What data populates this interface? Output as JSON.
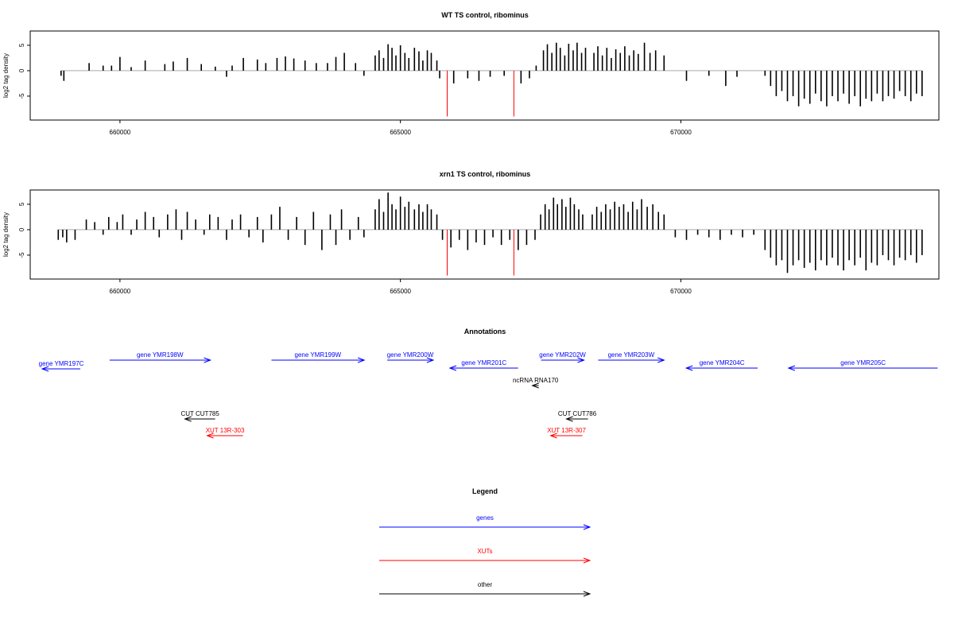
{
  "chart_data": [
    {
      "type": "bar",
      "title": "WT TS control, ribominus",
      "ylabel": "log2 tag density",
      "xlim": [
        658400,
        674600
      ],
      "ylim": [
        -9.7,
        7.8
      ],
      "xticks": [
        660000,
        665000,
        670000
      ],
      "yticks": [
        -5,
        0,
        5
      ],
      "series": [
        {
          "color": "#000000",
          "x": [
            658950,
            659000,
            659450,
            659700,
            659850,
            660000,
            660200,
            660450,
            660800,
            660950,
            661200,
            661450,
            661700,
            661900,
            662000,
            662200,
            662450,
            662600,
            662800,
            662950,
            663100,
            663300,
            663500,
            663700,
            663850,
            664000,
            664200,
            664350,
            664550,
            664620,
            664700,
            664780,
            664850,
            664920,
            665000,
            665080,
            665150,
            665250,
            665330,
            665400,
            665480,
            665550,
            665650,
            665700,
            665950,
            666200,
            666400,
            666600,
            666850,
            667150,
            667300,
            667420,
            667550,
            667620,
            667700,
            667780,
            667850,
            667930,
            668000,
            668080,
            668150,
            668230,
            668300,
            668450,
            668520,
            668600,
            668680,
            668760,
            668840,
            668920,
            669000,
            669080,
            669160,
            669240,
            669350,
            669450,
            669550,
            669700,
            670100,
            670500,
            670800,
            671000,
            671500,
            671600,
            671700,
            671800,
            671900,
            672000,
            672100,
            672200,
            672300,
            672400,
            672500,
            672600,
            672700,
            672800,
            672900,
            673000,
            673100,
            673200,
            673300,
            673400,
            673500,
            673600,
            673700,
            673800,
            673900,
            674000,
            674100,
            674200,
            674300
          ],
          "values": [
            -1,
            -2,
            1.5,
            1,
            1,
            2.7,
            0.7,
            2,
            1.3,
            1.8,
            2.5,
            1.3,
            0.8,
            -1.2,
            1,
            2.5,
            2.2,
            1.5,
            2.5,
            2.8,
            2.4,
            2,
            1.5,
            1.5,
            2.7,
            3.5,
            1.5,
            -1,
            3,
            4,
            2.5,
            5.2,
            4.5,
            3,
            5,
            3.5,
            2.5,
            4.5,
            3.8,
            2,
            4,
            3.5,
            2,
            -1.5,
            -2.5,
            -1.5,
            -2,
            -1.2,
            -1,
            -2.5,
            -1.5,
            1,
            4,
            5.2,
            3.5,
            5.5,
            4.5,
            3,
            5.3,
            4,
            5.5,
            3.5,
            4.5,
            3.5,
            4.8,
            3,
            4.5,
            2.5,
            4.2,
            3.5,
            4.8,
            3,
            4,
            3.3,
            5.5,
            3.5,
            4,
            3,
            -2,
            -1,
            -3,
            -1.2,
            -1,
            -3,
            -5,
            -4,
            -6,
            -5,
            -7,
            -5.5,
            -6.5,
            -4.5,
            -6,
            -7,
            -5,
            -6,
            -4.5,
            -6.5,
            -5,
            -7,
            -5.5,
            -6,
            -4.5,
            -6,
            -5,
            -5.5,
            -4,
            -5,
            -6,
            -4.5,
            -5
          ]
        },
        {
          "color": "#ff0000",
          "x": [
            665834,
            667023
          ],
          "values": [
            -9,
            -9
          ]
        }
      ]
    },
    {
      "type": "bar",
      "title": "xrn1 TS control, ribominus",
      "ylabel": "log2 tag density",
      "xlim": [
        658400,
        674600
      ],
      "ylim": [
        -9.7,
        7.8
      ],
      "xticks": [
        660000,
        665000,
        670000
      ],
      "yticks": [
        -5,
        0,
        5
      ],
      "series": [
        {
          "color": "#000000",
          "x": [
            658900,
            658980,
            659050,
            659200,
            659400,
            659550,
            659700,
            659800,
            659950,
            660050,
            660200,
            660300,
            660450,
            660600,
            660700,
            660850,
            661000,
            661100,
            661200,
            661350,
            661500,
            661600,
            661750,
            661900,
            662000,
            662150,
            662300,
            662450,
            662550,
            662700,
            662850,
            663000,
            663150,
            663300,
            663450,
            663600,
            663750,
            663850,
            663950,
            664100,
            664250,
            664350,
            664550,
            664620,
            664700,
            664780,
            664850,
            664920,
            665000,
            665080,
            665150,
            665250,
            665330,
            665400,
            665480,
            665550,
            665650,
            665750,
            665900,
            666050,
            666200,
            666350,
            666500,
            666650,
            666800,
            666950,
            667100,
            667250,
            667400,
            667500,
            667580,
            667650,
            667730,
            667800,
            667880,
            667950,
            668030,
            668100,
            668180,
            668250,
            668420,
            668500,
            668580,
            668660,
            668740,
            668820,
            668900,
            668980,
            669060,
            669140,
            669220,
            669300,
            669400,
            669500,
            669600,
            669700,
            669900,
            670100,
            670300,
            670500,
            670700,
            670900,
            671100,
            671300,
            671500,
            671600,
            671700,
            671800,
            671900,
            672000,
            672100,
            672200,
            672300,
            672400,
            672500,
            672600,
            672700,
            672800,
            672900,
            673000,
            673100,
            673200,
            673300,
            673400,
            673500,
            673600,
            673700,
            673800,
            673900,
            674000,
            674100,
            674200,
            674300
          ],
          "values": [
            -2,
            -1.5,
            -2.5,
            -2,
            2,
            1.5,
            -1,
            2.5,
            1.5,
            3,
            -1,
            2,
            3.5,
            2.5,
            -1.5,
            3,
            4,
            -2,
            3.5,
            2,
            -1,
            3,
            2.5,
            -2,
            2,
            3,
            -1.5,
            2.5,
            -2.5,
            3,
            4.5,
            -2,
            2.5,
            -3,
            3.5,
            -4,
            3,
            -3,
            4,
            -2,
            2.5,
            -1.5,
            4,
            6,
            3.5,
            7.3,
            5,
            4,
            6.5,
            4.5,
            5.5,
            4,
            5,
            3.5,
            5,
            4,
            3,
            -2,
            -3.5,
            -2,
            -4,
            -2.5,
            -3,
            -1.5,
            -3,
            -2,
            -4,
            -3,
            -2,
            3,
            5,
            4,
            6.3,
            5,
            6,
            4.5,
            6.3,
            5,
            4,
            3,
            3,
            4.5,
            3.5,
            5,
            4,
            5.5,
            4.5,
            5,
            3.5,
            5.5,
            4,
            6,
            4.5,
            5,
            3.5,
            3,
            -1.5,
            -2,
            -1,
            -1.5,
            -2,
            -1,
            -1.5,
            -1,
            -4,
            -5.5,
            -7,
            -6,
            -8.5,
            -7,
            -6,
            -7.5,
            -6.5,
            -8,
            -6,
            -7,
            -5.5,
            -7,
            -8,
            -6,
            -7,
            -5.5,
            -8,
            -6.5,
            -7,
            -5,
            -6,
            -7,
            -5.5,
            -6,
            -5,
            -6.5,
            -5
          ]
        },
        {
          "color": "#ff0000",
          "x": [
            665834,
            667023
          ],
          "values": [
            -9,
            -9
          ]
        }
      ]
    }
  ],
  "annotations": {
    "title": "Annotations",
    "features": [
      {
        "label": "gene YMR197C",
        "color": "#0000ff",
        "from": 659293,
        "to": 658614
      },
      {
        "label": "gene YMR198W",
        "color": "#0000ff",
        "from": 659816,
        "to": 661612
      },
      {
        "label": "gene YMR199W",
        "color": "#0000ff",
        "from": 662701,
        "to": 664355
      },
      {
        "label": "gene YMR200W",
        "color": "#0000ff",
        "from": 664765,
        "to": 665585
      },
      {
        "label": "gene YMR201C",
        "color": "#0000ff",
        "from": 667098,
        "to": 665882
      },
      {
        "label": "gene YMR202W",
        "color": "#0000ff",
        "from": 667508,
        "to": 668272
      },
      {
        "label": "gene YMR203W",
        "color": "#0000ff",
        "from": 668526,
        "to": 669700
      },
      {
        "label": "gene YMR204C",
        "color": "#0000ff",
        "from": 671369,
        "to": 670096
      },
      {
        "label": "gene YMR205C",
        "color": "#0000ff",
        "from": 674578,
        "to": 671920
      },
      {
        "label": "ncRNA RNA170",
        "color": "#000000",
        "from": 667466,
        "to": 667353
      },
      {
        "label": "CUT CUT785",
        "color": "#000000",
        "from": 661697,
        "to": 661159
      },
      {
        "label": "CUT CUT786",
        "color": "#000000",
        "from": 668343,
        "to": 667961
      },
      {
        "label": "XUT 13R-303",
        "color": "#ff0000",
        "from": 662192,
        "to": 661555
      },
      {
        "label": "XUT 13R-307",
        "color": "#ff0000",
        "from": 668244,
        "to": 667678
      }
    ]
  },
  "legend": {
    "title": "Legend",
    "items": [
      {
        "label": "genes",
        "color": "#0000ff"
      },
      {
        "label": "XUTs",
        "color": "#ff0000"
      },
      {
        "label": "other",
        "color": "#000000"
      }
    ]
  }
}
